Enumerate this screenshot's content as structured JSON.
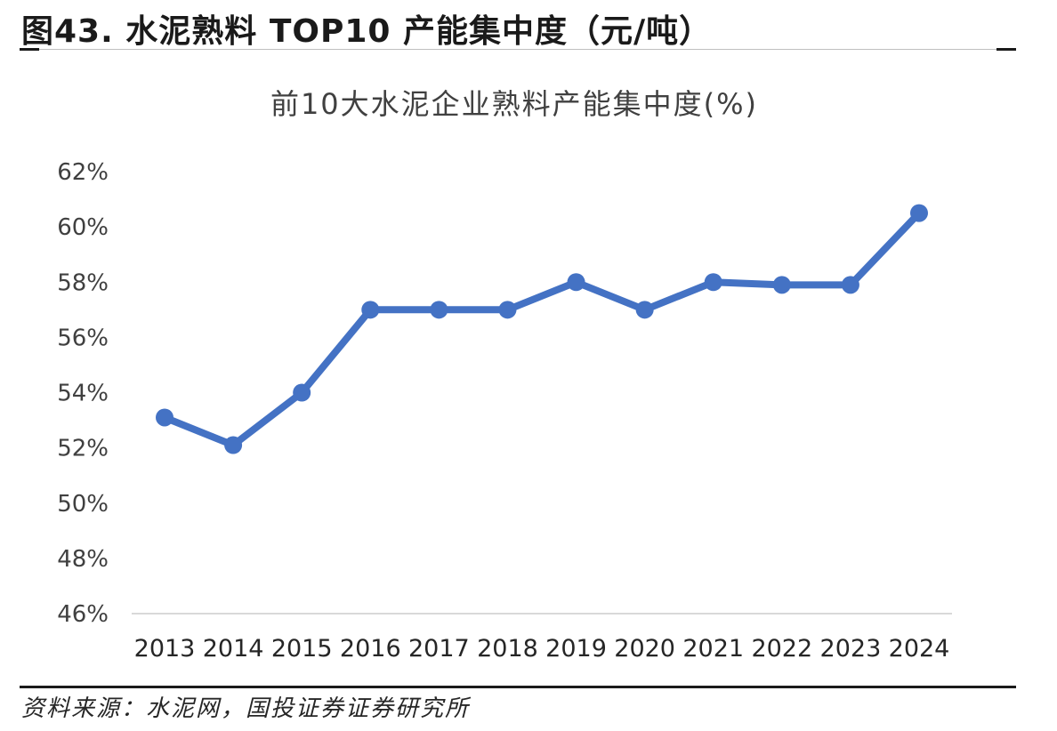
{
  "figure": {
    "title": "图43. 水泥熟料 TOP10 产能集中度（元/吨）",
    "source": "资料来源：水泥网，国投证券证券研究所"
  },
  "colors": {
    "line": "#4472C4",
    "axis": "#d9d9d9",
    "text": "#404040"
  },
  "chart_data": {
    "type": "line",
    "title": "前10大水泥企业熟料产能集中度(%)",
    "xlabel": "",
    "ylabel": "",
    "x": [
      "2013",
      "2014",
      "2015",
      "2016",
      "2017",
      "2018",
      "2019",
      "2020",
      "2021",
      "2022",
      "2023",
      "2024"
    ],
    "series": [
      {
        "values": [
          53.1,
          52.1,
          54.0,
          57.0,
          57.0,
          57.0,
          58.0,
          57.0,
          58.0,
          57.9,
          57.9,
          60.5
        ]
      }
    ],
    "ylim": [
      46,
      62
    ],
    "yticks": [
      "46%",
      "48%",
      "50%",
      "52%",
      "54%",
      "56%",
      "58%",
      "60%",
      "62%"
    ],
    "ytick_values": [
      46,
      48,
      50,
      52,
      54,
      56,
      58,
      60,
      62
    ],
    "grid": false,
    "legend": "none"
  }
}
